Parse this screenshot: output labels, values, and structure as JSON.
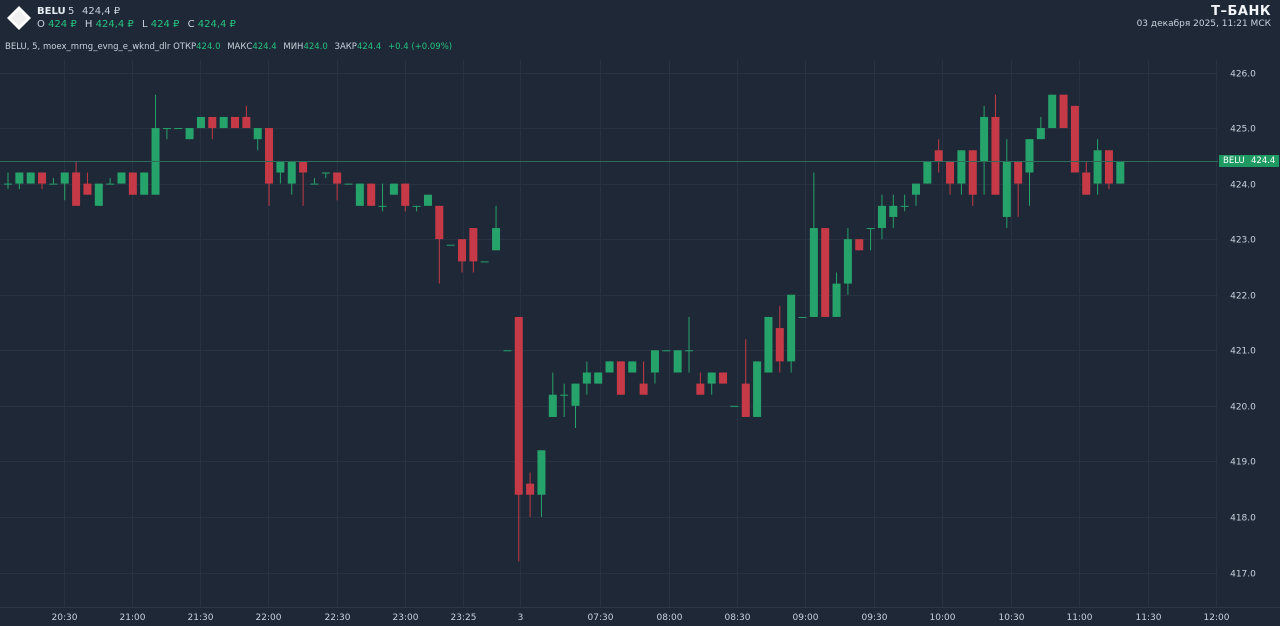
{
  "header": {
    "ticker": "BELU",
    "timeframe": "5",
    "last_price": "424,4 ₽",
    "ohlc": [
      {
        "k": "O",
        "v": "424 ₽"
      },
      {
        "k": "H",
        "v": "424,4 ₽"
      },
      {
        "k": "L",
        "v": "424 ₽"
      },
      {
        "k": "C",
        "v": "424,4 ₽"
      }
    ],
    "brand": "Т–БАНК",
    "datetime": "03 декабря 2025, 11:21 МСК"
  },
  "info_line": {
    "name": "BELU, 5, moex_mrng_evng_e_wknd_dlr",
    "open_label": "ОТКР",
    "open": "424.0",
    "high_label": "МАКС",
    "high": "424.4",
    "low_label": "МИН",
    "low": "424.0",
    "close_label": "ЗАКР",
    "close": "424.4",
    "change": "+0.4 (+0.09%)"
  },
  "price_tag": {
    "ticker": "BELU",
    "price": "424.4"
  },
  "colors": {
    "background": "#1e2836",
    "grid": "#273242",
    "up": "#26a26b",
    "down": "#c53a46",
    "text": "#c9d1dc",
    "accent_green": "#26c281"
  },
  "chart_data": {
    "type": "candlestick",
    "ylim": [
      416.6,
      426.4
    ],
    "y_ticks": [
      "417.0",
      "418.0",
      "419.0",
      "420.0",
      "421.0",
      "422.0",
      "423.0",
      "424.0",
      "425.0",
      "426.0"
    ],
    "x_ticks": [
      "20:30",
      "21:00",
      "21:30",
      "22:00",
      "22:30",
      "23:00",
      "23:25",
      "3",
      "07:30",
      "08:00",
      "08:30",
      "09:00",
      "09:30",
      "10:00",
      "10:30",
      "11:00",
      "11:30",
      "12:00"
    ],
    "grid": true,
    "last_price_line": 424.4,
    "candles": [
      {
        "t": "20:15",
        "o": 424.0,
        "h": 424.2,
        "l": 423.9,
        "c": 424.0
      },
      {
        "t": "20:20",
        "o": 424.0,
        "h": 424.2,
        "l": 423.9,
        "c": 424.2
      },
      {
        "t": "20:25",
        "o": 424.0,
        "h": 424.2,
        "l": 424.0,
        "c": 424.2
      },
      {
        "t": "20:30",
        "o": 424.2,
        "h": 424.2,
        "l": 423.9,
        "c": 424.0
      },
      {
        "t": "20:35",
        "o": 424.0,
        "h": 424.1,
        "l": 424.0,
        "c": 424.0
      },
      {
        "t": "20:40",
        "o": 424.0,
        "h": 424.2,
        "l": 423.7,
        "c": 424.2
      },
      {
        "t": "20:45",
        "o": 424.2,
        "h": 424.4,
        "l": 423.6,
        "c": 423.6
      },
      {
        "t": "20:50",
        "o": 424.0,
        "h": 424.2,
        "l": 423.8,
        "c": 423.8
      },
      {
        "t": "20:55",
        "o": 423.6,
        "h": 424.0,
        "l": 423.6,
        "c": 424.0
      },
      {
        "t": "21:00",
        "o": 424.0,
        "h": 424.1,
        "l": 424.0,
        "c": 424.0
      },
      {
        "t": "21:05",
        "o": 424.0,
        "h": 424.2,
        "l": 424.0,
        "c": 424.2
      },
      {
        "t": "21:10",
        "o": 424.2,
        "h": 424.2,
        "l": 423.8,
        "c": 423.8
      },
      {
        "t": "21:15",
        "o": 423.8,
        "h": 424.2,
        "l": 423.8,
        "c": 424.2
      },
      {
        "t": "21:20",
        "o": 423.8,
        "h": 425.6,
        "l": 423.8,
        "c": 425.0
      },
      {
        "t": "21:25",
        "o": 425.0,
        "h": 425.0,
        "l": 424.8,
        "c": 425.0
      },
      {
        "t": "21:30",
        "o": 425.0,
        "h": 425.0,
        "l": 425.0,
        "c": 425.0
      },
      {
        "t": "21:35",
        "o": 424.8,
        "h": 425.0,
        "l": 424.8,
        "c": 425.0
      },
      {
        "t": "21:40",
        "o": 425.0,
        "h": 425.2,
        "l": 425.0,
        "c": 425.2
      },
      {
        "t": "21:45",
        "o": 425.2,
        "h": 425.2,
        "l": 424.8,
        "c": 425.0
      },
      {
        "t": "21:50",
        "o": 425.0,
        "h": 425.2,
        "l": 425.0,
        "c": 425.2
      },
      {
        "t": "21:55",
        "o": 425.2,
        "h": 425.2,
        "l": 425.0,
        "c": 425.0
      },
      {
        "t": "22:00",
        "o": 425.2,
        "h": 425.4,
        "l": 425.0,
        "c": 425.0
      },
      {
        "t": "22:05",
        "o": 424.8,
        "h": 425.0,
        "l": 424.6,
        "c": 425.0
      },
      {
        "t": "22:10",
        "o": 425.0,
        "h": 425.0,
        "l": 423.6,
        "c": 424.0
      },
      {
        "t": "22:15",
        "o": 424.2,
        "h": 424.4,
        "l": 424.0,
        "c": 424.4
      },
      {
        "t": "22:20",
        "o": 424.0,
        "h": 424.4,
        "l": 423.8,
        "c": 424.4
      },
      {
        "t": "22:25",
        "o": 424.4,
        "h": 424.4,
        "l": 423.6,
        "c": 424.2
      },
      {
        "t": "22:30",
        "o": 424.0,
        "h": 424.1,
        "l": 424.0,
        "c": 424.0
      },
      {
        "t": "22:35",
        "o": 424.2,
        "h": 424.2,
        "l": 424.1,
        "c": 424.2
      },
      {
        "t": "22:40",
        "o": 424.2,
        "h": 424.2,
        "l": 423.7,
        "c": 424.0
      },
      {
        "t": "22:45",
        "o": 424.0,
        "h": 424.0,
        "l": 424.0,
        "c": 424.0
      },
      {
        "t": "22:50",
        "o": 423.6,
        "h": 424.0,
        "l": 423.6,
        "c": 424.0
      },
      {
        "t": "22:55",
        "o": 424.0,
        "h": 424.0,
        "l": 423.6,
        "c": 423.6
      },
      {
        "t": "23:00",
        "o": 423.6,
        "h": 424.0,
        "l": 423.5,
        "c": 423.6
      },
      {
        "t": "23:05",
        "o": 423.8,
        "h": 424.0,
        "l": 423.8,
        "c": 424.0
      },
      {
        "t": "23:10",
        "o": 424.0,
        "h": 424.0,
        "l": 423.5,
        "c": 423.6
      },
      {
        "t": "23:15",
        "o": 423.6,
        "h": 423.6,
        "l": 423.5,
        "c": 423.6
      },
      {
        "t": "23:20",
        "o": 423.6,
        "h": 423.8,
        "l": 423.6,
        "c": 423.8
      },
      {
        "t": "23:25",
        "o": 423.6,
        "h": 423.6,
        "l": 422.2,
        "c": 423.0
      },
      {
        "t": "23:30",
        "o": 422.9,
        "h": 422.9,
        "l": 422.9,
        "c": 422.9
      },
      {
        "t": "23:35",
        "o": 423.0,
        "h": 423.0,
        "l": 422.4,
        "c": 422.6
      },
      {
        "t": "23:40",
        "o": 423.2,
        "h": 423.2,
        "l": 422.4,
        "c": 422.6
      },
      {
        "t": "23:45",
        "o": 422.6,
        "h": 422.6,
        "l": 422.6,
        "c": 422.6
      },
      {
        "t": "23:50",
        "o": 422.8,
        "h": 423.6,
        "l": 422.8,
        "c": 423.2
      },
      {
        "t": "07:00",
        "o": 421.0,
        "h": 421.0,
        "l": 421.0,
        "c": 421.0
      },
      {
        "t": "07:05",
        "o": 421.6,
        "h": 421.6,
        "l": 417.2,
        "c": 418.4
      },
      {
        "t": "07:10",
        "o": 418.6,
        "h": 418.8,
        "l": 418.0,
        "c": 418.4
      },
      {
        "t": "07:15",
        "o": 418.4,
        "h": 419.2,
        "l": 418.0,
        "c": 419.2
      },
      {
        "t": "07:20",
        "o": 419.8,
        "h": 420.6,
        "l": 419.8,
        "c": 420.2
      },
      {
        "t": "07:25",
        "o": 420.2,
        "h": 420.4,
        "l": 419.8,
        "c": 420.2
      },
      {
        "t": "07:30",
        "o": 420.0,
        "h": 420.4,
        "l": 419.6,
        "c": 420.4
      },
      {
        "t": "07:35",
        "o": 420.4,
        "h": 420.8,
        "l": 420.2,
        "c": 420.6
      },
      {
        "t": "07:40",
        "o": 420.4,
        "h": 420.6,
        "l": 420.4,
        "c": 420.6
      },
      {
        "t": "07:45",
        "o": 420.6,
        "h": 420.8,
        "l": 420.6,
        "c": 420.8
      },
      {
        "t": "07:50",
        "o": 420.8,
        "h": 420.8,
        "l": 420.2,
        "c": 420.2
      },
      {
        "t": "07:55",
        "o": 420.6,
        "h": 420.8,
        "l": 420.6,
        "c": 420.8
      },
      {
        "t": "08:00",
        "o": 420.4,
        "h": 420.8,
        "l": 420.2,
        "c": 420.2
      },
      {
        "t": "08:05",
        "o": 420.6,
        "h": 421.0,
        "l": 420.4,
        "c": 421.0
      },
      {
        "t": "08:10",
        "o": 421.0,
        "h": 421.0,
        "l": 421.0,
        "c": 421.0
      },
      {
        "t": "08:15",
        "o": 420.6,
        "h": 421.0,
        "l": 420.6,
        "c": 421.0
      },
      {
        "t": "08:20",
        "o": 421.0,
        "h": 421.6,
        "l": 420.6,
        "c": 421.0
      },
      {
        "t": "08:25",
        "o": 420.4,
        "h": 420.6,
        "l": 420.2,
        "c": 420.2
      },
      {
        "t": "08:30",
        "o": 420.4,
        "h": 420.6,
        "l": 420.2,
        "c": 420.6
      },
      {
        "t": "08:35",
        "o": 420.6,
        "h": 420.6,
        "l": 420.4,
        "c": 420.4
      },
      {
        "t": "08:40",
        "o": 420.0,
        "h": 420.0,
        "l": 420.0,
        "c": 420.0
      },
      {
        "t": "08:45",
        "o": 420.4,
        "h": 421.2,
        "l": 419.8,
        "c": 419.8
      },
      {
        "t": "08:50",
        "o": 419.8,
        "h": 420.8,
        "l": 419.8,
        "c": 420.8
      },
      {
        "t": "08:55",
        "o": 420.6,
        "h": 421.6,
        "l": 420.6,
        "c": 421.6
      },
      {
        "t": "09:00",
        "o": 421.4,
        "h": 421.8,
        "l": 420.6,
        "c": 420.8
      },
      {
        "t": "09:05",
        "o": 420.8,
        "h": 422.0,
        "l": 420.6,
        "c": 422.0
      },
      {
        "t": "09:10",
        "o": 421.6,
        "h": 421.6,
        "l": 421.6,
        "c": 421.6
      },
      {
        "t": "09:15",
        "o": 421.6,
        "h": 424.2,
        "l": 421.6,
        "c": 423.2
      },
      {
        "t": "09:20",
        "o": 423.2,
        "h": 423.2,
        "l": 421.6,
        "c": 421.6
      },
      {
        "t": "09:25",
        "o": 421.6,
        "h": 422.4,
        "l": 421.6,
        "c": 422.2
      },
      {
        "t": "09:30",
        "o": 422.2,
        "h": 423.2,
        "l": 422.0,
        "c": 423.0
      },
      {
        "t": "09:35",
        "o": 423.0,
        "h": 423.0,
        "l": 422.8,
        "c": 422.8
      },
      {
        "t": "09:40",
        "o": 423.2,
        "h": 423.2,
        "l": 422.8,
        "c": 423.2
      },
      {
        "t": "09:45",
        "o": 423.2,
        "h": 423.8,
        "l": 423.0,
        "c": 423.6
      },
      {
        "t": "09:50",
        "o": 423.4,
        "h": 423.8,
        "l": 423.2,
        "c": 423.6
      },
      {
        "t": "09:55",
        "o": 423.6,
        "h": 423.8,
        "l": 423.5,
        "c": 423.6
      },
      {
        "t": "10:00",
        "o": 423.8,
        "h": 424.0,
        "l": 423.6,
        "c": 424.0
      },
      {
        "t": "10:05",
        "o": 424.0,
        "h": 424.4,
        "l": 424.0,
        "c": 424.4
      },
      {
        "t": "10:10",
        "o": 424.6,
        "h": 424.8,
        "l": 424.2,
        "c": 424.4
      },
      {
        "t": "10:15",
        "o": 424.4,
        "h": 424.4,
        "l": 423.8,
        "c": 424.0
      },
      {
        "t": "10:20",
        "o": 424.0,
        "h": 424.6,
        "l": 423.8,
        "c": 424.6
      },
      {
        "t": "10:25",
        "o": 424.6,
        "h": 424.6,
        "l": 423.6,
        "c": 423.8
      },
      {
        "t": "10:30",
        "o": 424.4,
        "h": 425.4,
        "l": 423.8,
        "c": 425.2
      },
      {
        "t": "10:35",
        "o": 425.2,
        "h": 425.6,
        "l": 423.8,
        "c": 423.8
      },
      {
        "t": "10:40",
        "o": 423.4,
        "h": 424.8,
        "l": 423.2,
        "c": 424.4
      },
      {
        "t": "10:45",
        "o": 424.4,
        "h": 424.4,
        "l": 423.4,
        "c": 424.0
      },
      {
        "t": "10:50",
        "o": 424.2,
        "h": 424.8,
        "l": 423.6,
        "c": 424.8
      },
      {
        "t": "10:55",
        "o": 424.8,
        "h": 425.2,
        "l": 424.8,
        "c": 425.0
      },
      {
        "t": "11:00",
        "o": 425.0,
        "h": 425.6,
        "l": 425.0,
        "c": 425.6
      },
      {
        "t": "11:05",
        "o": 425.6,
        "h": 425.6,
        "l": 425.0,
        "c": 425.0
      },
      {
        "t": "11:10",
        "o": 425.4,
        "h": 425.4,
        "l": 424.2,
        "c": 424.2
      },
      {
        "t": "11:15",
        "o": 424.2,
        "h": 424.4,
        "l": 423.8,
        "c": 423.8
      },
      {
        "t": "11:20",
        "o": 424.0,
        "h": 424.8,
        "l": 423.8,
        "c": 424.6
      },
      {
        "t": "11:25",
        "o": 424.6,
        "h": 424.6,
        "l": 423.9,
        "c": 424.0
      },
      {
        "t": "11:30",
        "o": 424.0,
        "h": 424.4,
        "l": 424.0,
        "c": 424.4
      }
    ]
  }
}
